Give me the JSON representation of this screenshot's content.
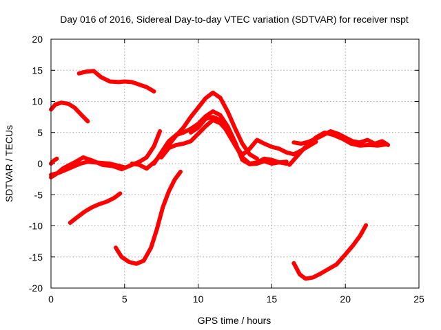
{
  "chart_data": {
    "type": "line",
    "title": "Day 016 of 2016, Sidereal Day-to-day VTEC variation (SDTVAR) for receiver nspt",
    "xlabel": "GPS time / hours",
    "ylabel": "SDTVAR / TECUs",
    "xlim": [
      0,
      25
    ],
    "ylim": [
      -20,
      20
    ],
    "xticks": [
      0,
      5,
      10,
      15,
      20,
      25
    ],
    "yticks": [
      -20,
      -15,
      -10,
      -5,
      0,
      5,
      10,
      15,
      20
    ],
    "xtick_labels": [
      "0",
      "5",
      "10",
      "15",
      "20",
      "25"
    ],
    "ytick_labels": [
      "-20",
      "-15",
      "-10",
      "-5",
      "0",
      "5",
      "10",
      "15",
      "20"
    ],
    "grid": true,
    "color": "#ff0000",
    "series": [
      {
        "name": "upper-left arc",
        "x": [
          1.9,
          2.4,
          2.9,
          3.4,
          4.0,
          4.6,
          5.0,
          5.5,
          6.0,
          6.5,
          7.0
        ],
        "y": [
          14.5,
          14.8,
          14.9,
          13.9,
          13.2,
          13.1,
          13.2,
          13.1,
          12.7,
          12.3,
          11.6
        ]
      },
      {
        "name": "early arc",
        "x": [
          0.0,
          0.3,
          0.7,
          1.2,
          1.6,
          2.0,
          2.5
        ],
        "y": [
          8.7,
          9.5,
          9.8,
          9.6,
          9.0,
          8.0,
          6.8
        ]
      },
      {
        "name": "near-zero band A",
        "x": [
          0.0,
          0.5,
          1.0,
          1.5,
          2.0,
          2.5,
          3.0,
          3.5,
          4.0,
          4.5,
          5.0
        ],
        "y": [
          -1.8,
          -1.5,
          -1.0,
          -0.5,
          0.0,
          0.3,
          0.2,
          0.1,
          0.0,
          -0.3,
          -0.6
        ]
      },
      {
        "name": "near-zero band B",
        "x": [
          0.0,
          0.4,
          0.8,
          1.2,
          1.6,
          2.2,
          2.8,
          3.5,
          4.2,
          4.8,
          5.5,
          6.0,
          6.5,
          7.0,
          7.4
        ],
        "y": [
          -2.2,
          -1.6,
          -0.8,
          -0.3,
          0.2,
          1.0,
          0.5,
          -0.2,
          -0.4,
          -0.9,
          -0.2,
          0.3,
          1.0,
          2.8,
          5.2
        ]
      },
      {
        "name": "short start",
        "x": [
          0.0,
          0.2,
          0.4
        ],
        "y": [
          0.0,
          0.5,
          0.8
        ]
      },
      {
        "name": "main daytime arc",
        "x": [
          5.5,
          6.0,
          6.5,
          7.0,
          7.5,
          8.0,
          8.5,
          9.0,
          9.5,
          10.0,
          10.5,
          11.0,
          11.5,
          12.0,
          12.5,
          13.0,
          13.5,
          14.0
        ],
        "y": [
          0.0,
          -0.2,
          -0.8,
          0.2,
          1.5,
          3.0,
          4.5,
          5.8,
          7.5,
          9.0,
          10.5,
          11.4,
          10.6,
          8.4,
          5.7,
          3.2,
          1.5,
          0.8
        ]
      },
      {
        "name": "second daytime arc",
        "x": [
          7.0,
          7.5,
          8.0,
          8.5,
          9.0,
          9.5,
          10.0,
          10.5,
          11.0,
          11.5,
          12.0,
          12.5,
          13.0,
          13.5,
          14.0,
          14.5,
          15.0,
          15.5,
          16.0
        ],
        "y": [
          0.0,
          1.8,
          3.6,
          4.6,
          5.0,
          5.6,
          6.4,
          7.6,
          8.4,
          7.8,
          6.0,
          3.5,
          0.6,
          -0.1,
          0.0,
          0.4,
          0.0,
          0.2,
          0.3
        ]
      },
      {
        "name": "third daytime arc",
        "x": [
          7.5,
          8.0,
          8.5,
          9.0,
          9.5,
          10.0,
          10.5,
          11.0,
          11.5,
          12.0,
          12.5,
          13.0,
          13.5,
          14.0,
          14.5,
          15.0,
          15.5,
          16.0
        ],
        "y": [
          1.0,
          2.5,
          3.0,
          3.2,
          3.6,
          4.8,
          6.0,
          7.0,
          6.5,
          5.2,
          3.0,
          1.0,
          0.0,
          0.2,
          0.8,
          0.6,
          0.2,
          0.0
        ]
      },
      {
        "name": "fourth daytime arc",
        "x": [
          9.5,
          10.0,
          10.5,
          11.0,
          11.5,
          12.0,
          12.5,
          13.0,
          13.5,
          14.0,
          14.5,
          15.0,
          15.5,
          16.0,
          16.5,
          17.0,
          17.5,
          18.0
        ],
        "y": [
          5.0,
          5.8,
          7.2,
          7.5,
          7.0,
          5.0,
          3.0,
          1.4,
          2.4,
          3.8,
          3.2,
          2.7,
          2.4,
          1.8,
          1.5,
          2.1,
          2.8,
          3.5
        ]
      },
      {
        "name": "evening positive arc",
        "x": [
          16.2,
          16.8,
          17.4,
          18.0,
          18.6,
          19.2,
          19.8,
          20.4,
          21.0,
          21.6,
          22.2,
          22.8
        ],
        "y": [
          -0.2,
          1.4,
          3.0,
          4.2,
          5.0,
          4.6,
          4.0,
          3.2,
          2.9,
          3.0,
          2.9,
          3.1
        ]
      },
      {
        "name": "evening positive arc 2",
        "x": [
          16.5,
          17.0,
          17.5,
          18.0,
          18.5,
          19.0,
          19.5,
          20.0,
          20.5,
          21.0,
          21.5,
          22.0,
          22.5,
          22.9
        ],
        "y": [
          3.4,
          3.2,
          3.5,
          4.0,
          4.6,
          5.2,
          4.8,
          4.2,
          3.6,
          3.4,
          3.8,
          3.2,
          3.6,
          3.0
        ]
      },
      {
        "name": "negative arc A",
        "x": [
          1.3,
          1.8,
          2.3,
          2.8,
          3.3,
          3.8,
          4.3,
          4.7
        ],
        "y": [
          -9.5,
          -8.6,
          -7.7,
          -7.0,
          -6.5,
          -6.1,
          -5.5,
          -4.8
        ]
      },
      {
        "name": "negative dip",
        "x": [
          4.4,
          4.8,
          5.3,
          5.8,
          6.3,
          6.8,
          7.2,
          7.6,
          8.0,
          8.4,
          8.8
        ],
        "y": [
          -13.5,
          -15.0,
          -15.8,
          -16.1,
          -15.6,
          -13.5,
          -10.5,
          -7.0,
          -4.5,
          -2.6,
          -1.3
        ]
      },
      {
        "name": "late negative arc",
        "x": [
          16.5,
          16.9,
          17.3,
          17.8,
          18.3,
          18.8,
          19.4,
          20.0,
          20.5,
          21.0,
          21.4
        ],
        "y": [
          -16.0,
          -17.8,
          -18.5,
          -18.3,
          -17.7,
          -17.0,
          -16.2,
          -14.6,
          -13.2,
          -11.6,
          -9.9
        ]
      }
    ]
  }
}
